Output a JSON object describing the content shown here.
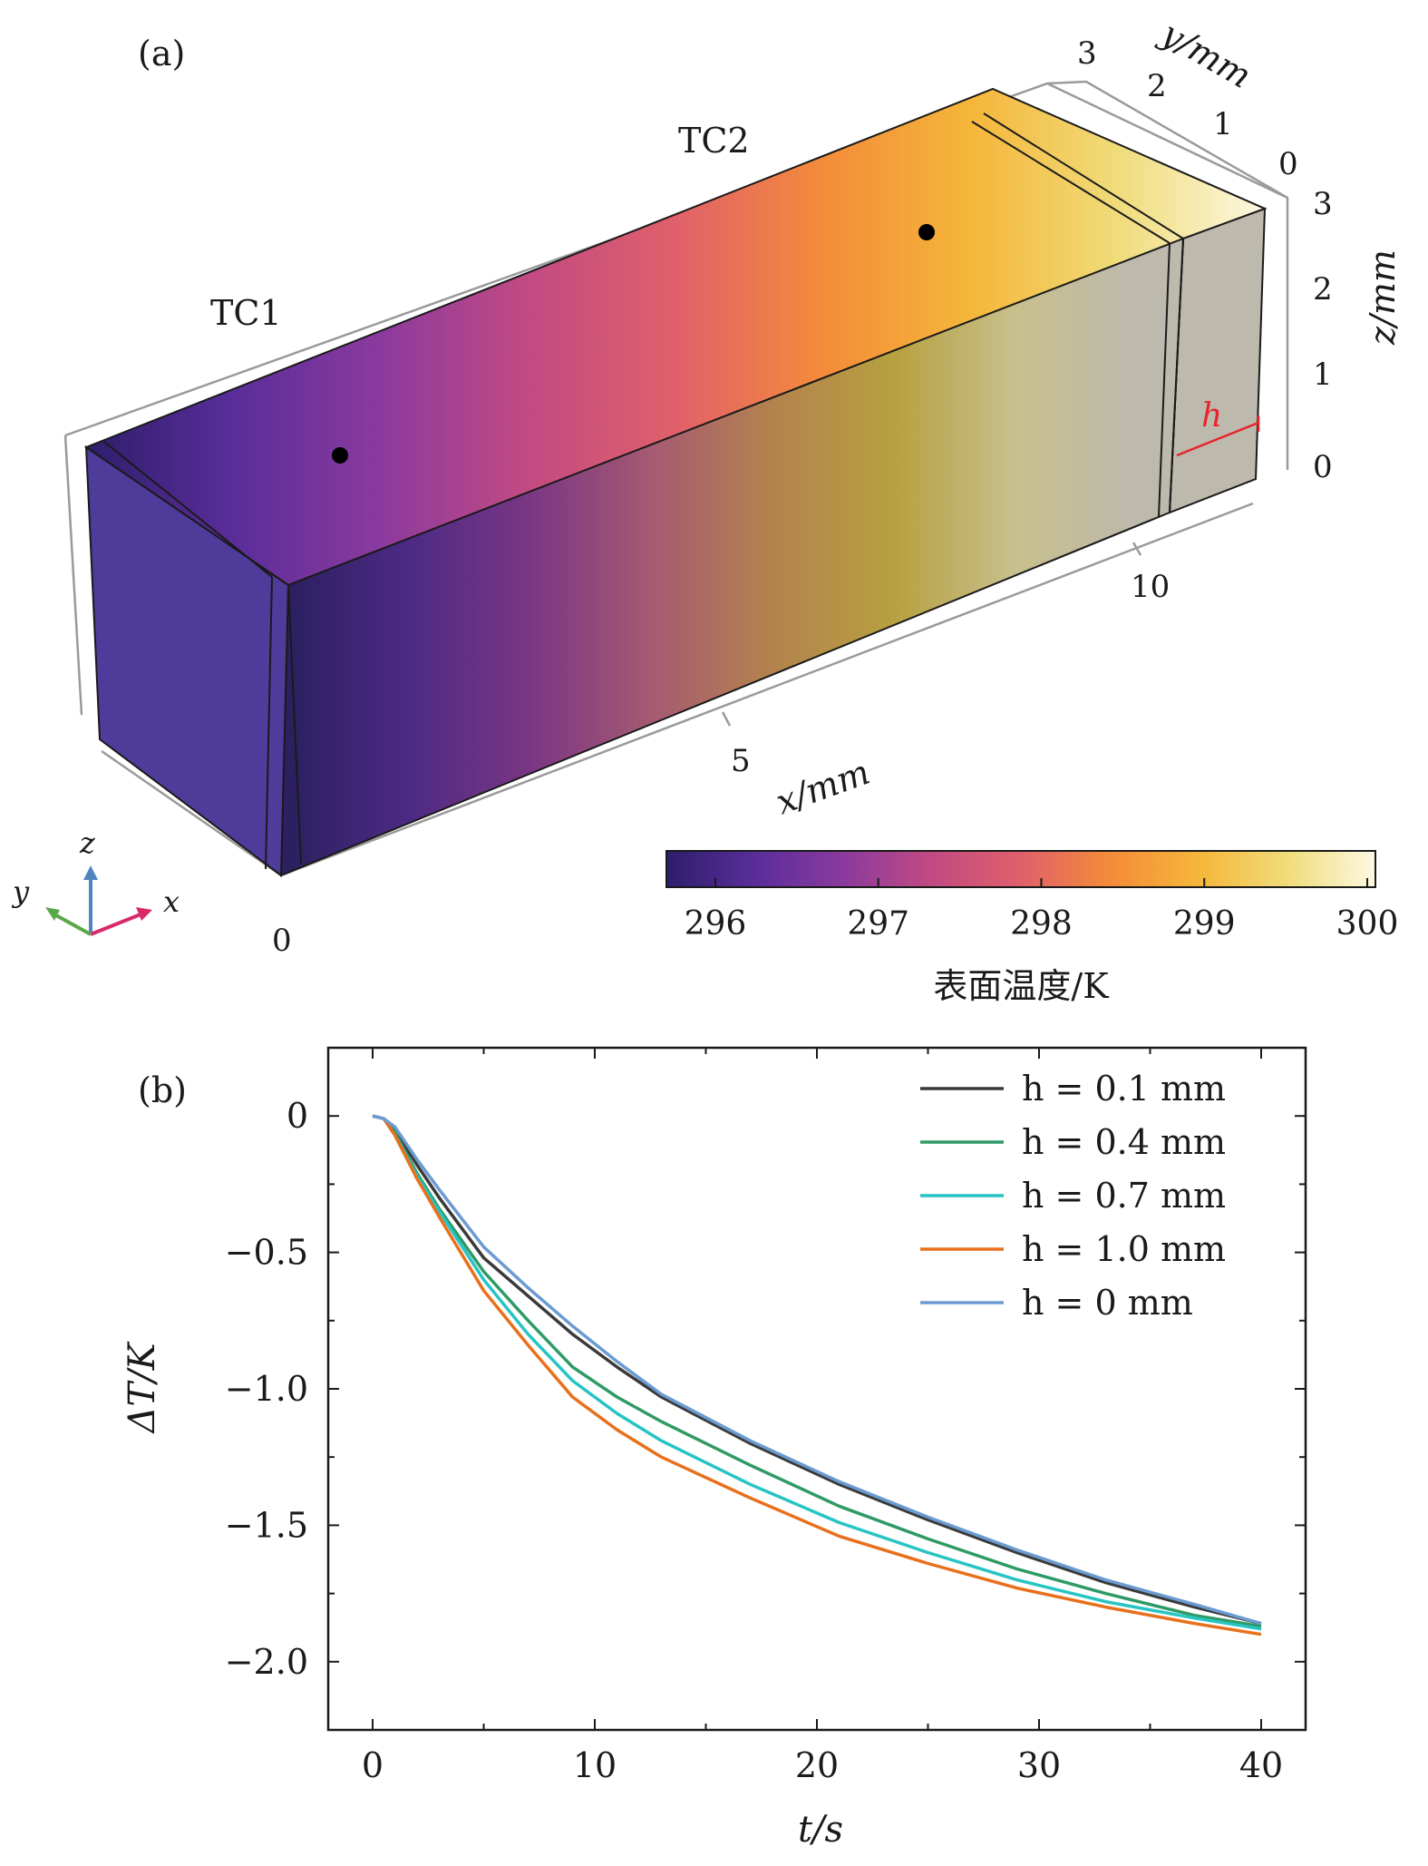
{
  "panel_a": {
    "label": "(a)",
    "markers": [
      "TC1",
      "TC2"
    ],
    "h_label": "h",
    "axes": {
      "x_label": "x/mm",
      "y_label": "y/mm",
      "z_label": "z/mm",
      "x_ticks": [
        "0",
        "5",
        "10"
      ],
      "y_ticks": [
        "0",
        "1",
        "2",
        "3"
      ],
      "z_ticks": [
        "0",
        "1",
        "2",
        "3"
      ]
    },
    "triad": {
      "x": "x",
      "y": "y",
      "z": "z"
    },
    "colorbar": {
      "title": "表面温度/K",
      "ticks": [
        "296",
        "297",
        "298",
        "299",
        "300"
      ],
      "range": [
        295.7,
        300.05
      ],
      "colors": [
        "#2d1e6b",
        "#5a2d9a",
        "#8b3a9e",
        "#c24a82",
        "#e0606a",
        "#f48b3a",
        "#f5b63a",
        "#f0dc7a",
        "#fdf8e2"
      ]
    },
    "colors": {
      "front_face": "#4e3b9a",
      "end_face": "#bdb9ad",
      "h_marker": "#e8242a",
      "triad_x": "#d9296a",
      "triad_y": "#5aa84a",
      "triad_z": "#4f86c0"
    }
  },
  "chart_data": {
    "type": "line",
    "panel_label": "(b)",
    "xlabel": "t/s",
    "ylabel": "ΔT/K",
    "xlim": [
      -2,
      42
    ],
    "ylim": [
      -2.25,
      0.25
    ],
    "xticks": [
      0,
      10,
      20,
      30,
      40
    ],
    "xticklabels": [
      "0",
      "10",
      "20",
      "30",
      "40"
    ],
    "yticks": [
      0,
      -0.5,
      -1.0,
      -1.5,
      -2.0
    ],
    "yticklabels": [
      "0",
      "−0.5",
      "−1.0",
      "−1.5",
      "−2.0"
    ],
    "legend_position": "top-right",
    "grid": false,
    "series": [
      {
        "name": "h = 0.1 mm",
        "color": "#3a3a3a",
        "x": [
          0,
          0.5,
          1,
          2,
          3,
          5,
          7,
          9,
          11,
          13,
          17,
          21,
          25,
          29,
          33,
          37,
          40
        ],
        "y": [
          0,
          -0.01,
          -0.05,
          -0.18,
          -0.3,
          -0.52,
          -0.66,
          -0.8,
          -0.92,
          -1.03,
          -1.2,
          -1.35,
          -1.48,
          -1.6,
          -1.71,
          -1.8,
          -1.86
        ]
      },
      {
        "name": "h = 0.4 mm",
        "color": "#2f9a66",
        "x": [
          0,
          0.5,
          1,
          2,
          3,
          5,
          7,
          9,
          11,
          13,
          17,
          21,
          25,
          29,
          33,
          37,
          40
        ],
        "y": [
          0,
          -0.01,
          -0.06,
          -0.21,
          -0.34,
          -0.57,
          -0.75,
          -0.92,
          -1.03,
          -1.12,
          -1.28,
          -1.43,
          -1.55,
          -1.66,
          -1.75,
          -1.83,
          -1.87
        ]
      },
      {
        "name": "h = 0.7 mm",
        "color": "#27c4c4",
        "x": [
          0,
          0.5,
          1,
          2,
          3,
          5,
          7,
          9,
          11,
          13,
          17,
          21,
          25,
          29,
          33,
          37,
          40
        ],
        "y": [
          0,
          -0.01,
          -0.07,
          -0.22,
          -0.35,
          -0.6,
          -0.8,
          -0.97,
          -1.09,
          -1.19,
          -1.35,
          -1.49,
          -1.6,
          -1.7,
          -1.78,
          -1.84,
          -1.88
        ]
      },
      {
        "name": "h = 1.0 mm",
        "color": "#e8701c",
        "x": [
          0,
          0.5,
          1,
          2,
          3,
          5,
          7,
          9,
          11,
          13,
          17,
          21,
          25,
          29,
          33,
          37,
          40
        ],
        "y": [
          0,
          -0.01,
          -0.07,
          -0.23,
          -0.37,
          -0.64,
          -0.84,
          -1.03,
          -1.15,
          -1.25,
          -1.4,
          -1.54,
          -1.64,
          -1.73,
          -1.8,
          -1.86,
          -1.9
        ]
      },
      {
        "name": "h = 0 mm",
        "color": "#6b9bd1",
        "x": [
          0,
          0.5,
          1,
          2,
          3,
          5,
          7,
          9,
          11,
          13,
          17,
          21,
          25,
          29,
          33,
          37,
          40
        ],
        "y": [
          0,
          -0.01,
          -0.04,
          -0.16,
          -0.27,
          -0.48,
          -0.63,
          -0.77,
          -0.9,
          -1.02,
          -1.19,
          -1.34,
          -1.47,
          -1.59,
          -1.7,
          -1.79,
          -1.86
        ]
      }
    ]
  }
}
